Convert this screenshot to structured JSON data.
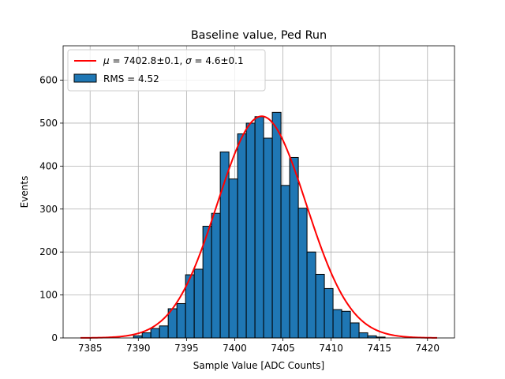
{
  "chart_data": {
    "type": "bar",
    "title": "Baseline value, Ped Run",
    "xlabel": "Sample Value [ADC Counts]",
    "ylabel": "Events",
    "xlim": [
      7382.2,
      7422.8
    ],
    "ylim": [
      0,
      680
    ],
    "xticks": [
      7385,
      7390,
      7395,
      7400,
      7405,
      7410,
      7415,
      7420
    ],
    "yticks": [
      0,
      100,
      200,
      300,
      400,
      500,
      600
    ],
    "grid": true,
    "legend_position": "top-left",
    "histogram": {
      "name": "RMS = 4.52",
      "bin_width": 0.9,
      "bin_starts": [
        7389.5,
        7390.4,
        7391.3,
        7392.2,
        7393.1,
        7394.0,
        7394.9,
        7395.8,
        7396.7,
        7397.6,
        7398.5,
        7399.4,
        7400.3,
        7401.2,
        7402.1,
        7403.0,
        7403.9,
        7404.8,
        7405.7,
        7406.6,
        7407.5,
        7408.4,
        7409.3,
        7410.2,
        7411.1,
        7412.0,
        7412.9,
        7413.8,
        7414.7
      ],
      "values": [
        5,
        12,
        22,
        28,
        68,
        80,
        147,
        160,
        260,
        290,
        433,
        370,
        475,
        500,
        515,
        465,
        525,
        355,
        420,
        302,
        200,
        148,
        115,
        66,
        62,
        35,
        12,
        5,
        2
      ],
      "color": "#1f77b4",
      "edge_color": "#000000"
    },
    "fit": {
      "name_parts": [
        "μ",
        " = 7402.8±0.1, ",
        "σ",
        " = 4.6±0.1"
      ],
      "function": "gaussian",
      "mu": 7402.8,
      "sigma": 4.6,
      "amplitude": 516,
      "x_range": [
        7384,
        7421
      ],
      "color": "#ff0000"
    }
  }
}
